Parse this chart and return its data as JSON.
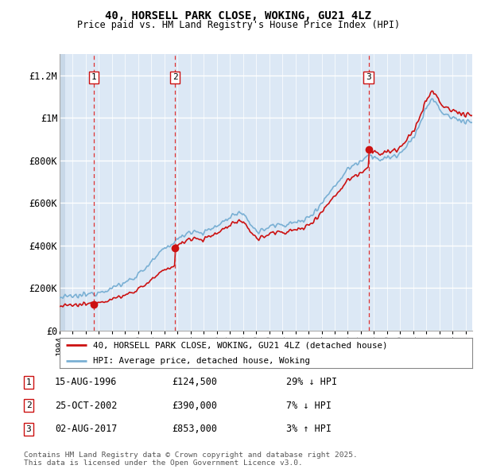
{
  "title": "40, HORSELL PARK CLOSE, WOKING, GU21 4LZ",
  "subtitle": "Price paid vs. HM Land Registry's House Price Index (HPI)",
  "ylim": [
    0,
    1300000
  ],
  "xlim": [
    1994,
    2025.5
  ],
  "plot_bg_color": "#dce8f5",
  "hatch_color": "#c8d8e8",
  "grid_color": "#ffffff",
  "sale_dates": [
    1996.62,
    2002.81,
    2017.58
  ],
  "sale_prices": [
    124500,
    390000,
    853000
  ],
  "sale_labels": [
    "1",
    "2",
    "3"
  ],
  "sale_info": [
    {
      "label": "1",
      "date": "15-AUG-1996",
      "price": "£124,500",
      "pct": "29% ↓ HPI"
    },
    {
      "label": "2",
      "date": "25-OCT-2002",
      "price": "£390,000",
      "pct": "7% ↓ HPI"
    },
    {
      "label": "3",
      "date": "02-AUG-2017",
      "price": "£853,000",
      "pct": "3% ↑ HPI"
    }
  ],
  "legend_line1": "40, HORSELL PARK CLOSE, WOKING, GU21 4LZ (detached house)",
  "legend_line2": "HPI: Average price, detached house, Woking",
  "footer": "Contains HM Land Registry data © Crown copyright and database right 2025.\nThis data is licensed under the Open Government Licence v3.0.",
  "yticks": [
    0,
    200000,
    400000,
    600000,
    800000,
    1000000,
    1200000
  ],
  "ytick_labels": [
    "£0",
    "£200K",
    "£400K",
    "£600K",
    "£800K",
    "£1M",
    "£1.2M"
  ],
  "xticks": [
    1994,
    1995,
    1996,
    1997,
    1998,
    1999,
    2000,
    2001,
    2002,
    2003,
    2004,
    2005,
    2006,
    2007,
    2008,
    2009,
    2010,
    2011,
    2012,
    2013,
    2014,
    2015,
    2016,
    2017,
    2018,
    2019,
    2020,
    2021,
    2022,
    2023,
    2024,
    2025
  ],
  "hpi_color": "#7ab0d4",
  "price_color": "#cc1111",
  "vline_color": "#dd3333",
  "dot_color": "#cc1111"
}
